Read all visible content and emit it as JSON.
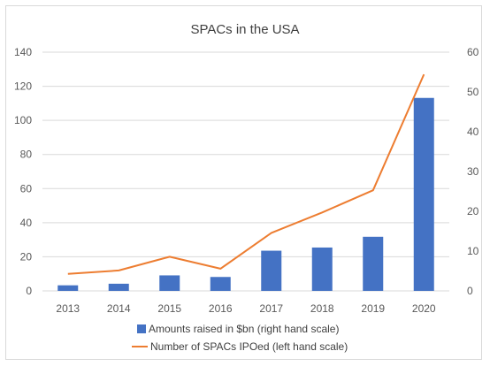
{
  "chart_data": {
    "type": "bar",
    "title": "SPACs in the USA",
    "categories": [
      "2013",
      "2014",
      "2015",
      "2016",
      "2017",
      "2018",
      "2019",
      "2020"
    ],
    "left_axis": {
      "ylim": [
        0,
        140
      ],
      "ticks": [
        "0",
        "20",
        "40",
        "60",
        "80",
        "100",
        "120",
        "140"
      ]
    },
    "right_axis": {
      "ylim": [
        0,
        60
      ],
      "ticks": [
        "0",
        "10",
        "20",
        "30",
        "40",
        "50",
        "60"
      ]
    },
    "series": [
      {
        "name": "Amounts raised in $bn (right hand scale)",
        "type": "bar",
        "axis": "right",
        "color": "#4472c4",
        "values": [
          1.4,
          1.8,
          3.9,
          3.5,
          10.1,
          10.9,
          13.6,
          48.5
        ]
      },
      {
        "name": "Number of  SPACs IPOed (left hand scale)",
        "type": "line",
        "axis": "left",
        "color": "#ed7d31",
        "values": [
          10,
          12,
          20,
          13,
          34,
          46,
          59,
          127
        ]
      }
    ],
    "grid": true,
    "legend_position": "bottom"
  }
}
